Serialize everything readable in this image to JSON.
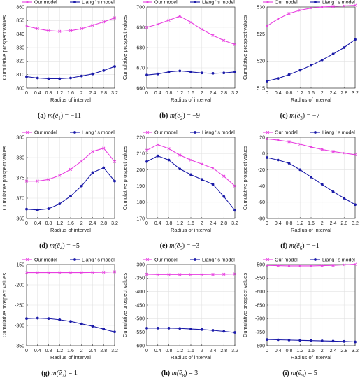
{
  "colors": {
    "ours": "#e83ee0",
    "liang": "#1a1aa8",
    "axis": "#333333",
    "grid": "#e2e2e2"
  },
  "legend": {
    "ours": "Our model",
    "liang": "Liang ' s model"
  },
  "chart_data": [
    {
      "type": "line",
      "caption": {
        "letter": "(a)",
        "expr": "m(ẽ",
        "sub": "1",
        "rhs": ") = −11"
      },
      "xlabel": "Radius of interval",
      "ylabel": "Cumulative prospect values",
      "x": [
        0,
        0.4,
        0.8,
        1.2,
        1.6,
        2,
        2.4,
        2.8,
        3.2
      ],
      "xticks": [
        "0",
        "0.4",
        "0.8",
        "1.2",
        "1.6",
        "2",
        "2.4",
        "2.8",
        "3.2"
      ],
      "ylim": [
        800,
        860
      ],
      "yticks": [
        800,
        810,
        820,
        830,
        840,
        850,
        860
      ],
      "series": [
        {
          "name": "Our model",
          "values": [
            846,
            844,
            842.5,
            842,
            842.5,
            844,
            846.5,
            849,
            852
          ]
        },
        {
          "name": "Liang ' s model",
          "values": [
            808.5,
            807.5,
            807,
            807,
            807.5,
            809,
            810.5,
            813,
            816
          ]
        }
      ]
    },
    {
      "type": "line",
      "caption": {
        "letter": "(b)",
        "expr": "m(ẽ",
        "sub": "2",
        "rhs": ") = −9"
      },
      "xlabel": "Radius of interval",
      "ylabel": "Cumulative prospect values",
      "x": [
        0,
        0.4,
        0.8,
        1.2,
        1.6,
        2,
        2.4,
        2.8,
        3.2
      ],
      "xticks": [
        "0",
        "0.4",
        "0.8",
        "1.2",
        "1.6",
        "2",
        "2.4",
        "2.8",
        "3.2"
      ],
      "ylim": [
        660,
        700
      ],
      "yticks": [
        660,
        670,
        680,
        690,
        700
      ],
      "series": [
        {
          "name": "Our model",
          "values": [
            690,
            691.5,
            693.5,
            695.5,
            692.5,
            689,
            686,
            683.5,
            681.5
          ]
        },
        {
          "name": "Liang ' s model",
          "values": [
            666.5,
            667,
            668,
            668.5,
            668,
            667.5,
            667.3,
            667.5,
            668
          ]
        }
      ]
    },
    {
      "type": "line",
      "caption": {
        "letter": "(c)",
        "expr": "m(ẽ",
        "sub": "3",
        "rhs": ") = −7"
      },
      "xlabel": "Radius of interval",
      "ylabel": "Cumulative prospect values",
      "x": [
        0,
        0.4,
        0.8,
        1.2,
        1.6,
        2,
        2.4,
        2.8,
        3.2
      ],
      "xticks": [
        "0",
        "0.4",
        "0.8",
        "1.2",
        "1.6",
        "2",
        "2.4",
        "2.8",
        "3.2"
      ],
      "ylim": [
        515,
        530
      ],
      "yticks": [
        515,
        520,
        525,
        530
      ],
      "series": [
        {
          "name": "Our model",
          "values": [
            526.5,
            527.8,
            528.8,
            529.4,
            529.8,
            530,
            530.1,
            530.2,
            530.3
          ]
        },
        {
          "name": "Liang ' s model",
          "values": [
            516.3,
            516.8,
            517.5,
            518.3,
            519.2,
            520.2,
            521.3,
            522.5,
            524
          ]
        }
      ]
    },
    {
      "type": "line",
      "caption": {
        "letter": "(d)",
        "expr": "m(ẽ",
        "sub": "4",
        "rhs": ") = −5"
      },
      "xlabel": "Radius of interval",
      "ylabel": "Cumulative prospect values",
      "x": [
        0,
        0.4,
        0.8,
        1.2,
        1.6,
        2,
        2.4,
        2.8,
        3.2
      ],
      "xticks": [
        "0",
        "0.4",
        "0.8",
        "1.2",
        "1.6",
        "2",
        "2.4",
        "2.8",
        "3.2"
      ],
      "ylim": [
        365,
        385
      ],
      "yticks": [
        365,
        370,
        375,
        380,
        385
      ],
      "series": [
        {
          "name": "Our model",
          "values": [
            374.2,
            374.2,
            374.6,
            375.6,
            377.1,
            379.1,
            381.5,
            382.3,
            379
          ]
        },
        {
          "name": "Liang ' s model",
          "values": [
            367.3,
            367.1,
            367.4,
            368.6,
            370.5,
            373,
            376.3,
            377.5,
            374.2
          ]
        }
      ]
    },
    {
      "type": "line",
      "caption": {
        "letter": "(e)",
        "expr": "m(ẽ",
        "sub": "5",
        "rhs": ") = −3"
      },
      "xlabel": "Radius of interval",
      "ylabel": "Cumulative prospect values",
      "x": [
        0,
        0.4,
        0.8,
        1.2,
        1.6,
        2,
        2.4,
        2.8,
        3.2
      ],
      "xticks": [
        "0",
        "0.4",
        "0.8",
        "1.2",
        "1.6",
        "2",
        "2.4",
        "2.8",
        "3.2"
      ],
      "ylim": [
        170,
        220
      ],
      "yticks": [
        170,
        180,
        190,
        200,
        210,
        220
      ],
      "series": [
        {
          "name": "Our model",
          "values": [
            212,
            215.5,
            213,
            209,
            206,
            203.5,
            201,
            196,
            190
          ]
        },
        {
          "name": "Liang ' s model",
          "values": [
            205,
            208.5,
            206,
            200.5,
            197,
            194,
            191,
            183.5,
            175
          ]
        }
      ]
    },
    {
      "type": "line",
      "caption": {
        "letter": "(f)",
        "expr": "m(ẽ",
        "sub": "6",
        "rhs": ") = −1"
      },
      "xlabel": "Radius of interval",
      "ylabel": "Cumulative prospect values",
      "x": [
        0,
        0.4,
        0.8,
        1.2,
        1.6,
        2,
        2.4,
        2.8,
        3.2
      ],
      "xticks": [
        "0",
        "0.4",
        "0.8",
        "1.2",
        "1.6",
        "2",
        "2.4",
        "2.8",
        "3.2"
      ],
      "ylim": [
        -80,
        20
      ],
      "yticks": [
        -80,
        -60,
        -40,
        -20,
        0,
        20
      ],
      "series": [
        {
          "name": "Our model",
          "values": [
            18,
            16.5,
            14.5,
            11.5,
            8,
            5,
            2.5,
            0.5,
            -1.5
          ]
        },
        {
          "name": "Liang ' s model",
          "values": [
            -5,
            -8,
            -12,
            -20,
            -29,
            -38,
            -47,
            -55,
            -63
          ]
        }
      ]
    },
    {
      "type": "line",
      "caption": {
        "letter": "(g)",
        "expr": "m(ẽ",
        "sub": "7",
        "rhs": ") = 1"
      },
      "xlabel": "Radius of interval",
      "ylabel": "Cumulative prospect values",
      "x": [
        0,
        0.4,
        0.8,
        1.2,
        1.6,
        2,
        2.4,
        2.8,
        3.2
      ],
      "xticks": [
        "0",
        "0.4",
        "0.8",
        "1.2",
        "1.6",
        "2",
        "2.4",
        "2.8",
        "3.2"
      ],
      "ylim": [
        -350,
        -150
      ],
      "yticks": [
        -350,
        -300,
        -250,
        -200,
        -150
      ],
      "series": [
        {
          "name": "Our model",
          "values": [
            -170,
            -170,
            -170,
            -170,
            -170,
            -170,
            -169.5,
            -169,
            -168
          ]
        },
        {
          "name": "Liang ' s model",
          "values": [
            -283,
            -282,
            -283,
            -286,
            -290,
            -296,
            -302,
            -309,
            -316
          ]
        }
      ]
    },
    {
      "type": "line",
      "caption": {
        "letter": "(h)",
        "expr": "m(ẽ",
        "sub": "8",
        "rhs": ") = 3"
      },
      "xlabel": "Radius of interval",
      "ylabel": "Cumulative prospect values",
      "x": [
        0,
        0.4,
        0.8,
        1.2,
        1.6,
        2,
        2.4,
        2.8,
        3.2
      ],
      "xticks": [
        "0",
        "0.4",
        "0.8",
        "1.2",
        "1.6",
        "2",
        "2.4",
        "2.8",
        "3.2"
      ],
      "ylim": [
        -600,
        -300
      ],
      "yticks": [
        -600,
        -550,
        -500,
        -450,
        -400,
        -350,
        -300
      ],
      "series": [
        {
          "name": "Our model",
          "values": [
            -336,
            -337,
            -337,
            -337,
            -337,
            -337,
            -336.5,
            -336,
            -335
          ]
        },
        {
          "name": "Liang ' s model",
          "values": [
            -535,
            -535,
            -535,
            -536,
            -538,
            -540,
            -543,
            -547,
            -551
          ]
        }
      ]
    },
    {
      "type": "line",
      "caption": {
        "letter": "(i)",
        "expr": "m(ẽ",
        "sub": "9",
        "rhs": ") = 5"
      },
      "xlabel": "Radius of interval",
      "ylabel": "Cumulative prospect values",
      "x": [
        0,
        0.4,
        0.8,
        1.2,
        1.6,
        2,
        2.4,
        2.8,
        3.2
      ],
      "xticks": [
        "0",
        "0.4",
        "0.8",
        "1.2",
        "1.6",
        "2",
        "2.4",
        "2.8",
        "3.2"
      ],
      "ylim": [
        -800,
        -500
      ],
      "yticks": [
        -800,
        -750,
        -700,
        -650,
        -600,
        -550,
        -500
      ],
      "series": [
        {
          "name": "Our model",
          "values": [
            -503,
            -504,
            -505,
            -505,
            -505,
            -504,
            -503,
            -501,
            -499
          ]
        },
        {
          "name": "Liang ' s model",
          "values": [
            -777,
            -778,
            -779,
            -780,
            -781,
            -782,
            -783,
            -784,
            -786
          ]
        }
      ]
    }
  ]
}
